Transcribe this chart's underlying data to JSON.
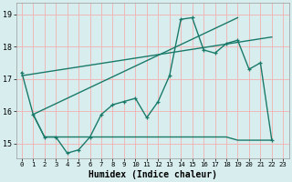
{
  "xlabel": "Humidex (Indice chaleur)",
  "xlim": [
    -0.5,
    23.5
  ],
  "ylim": [
    14.55,
    19.35
  ],
  "yticks": [
    15,
    16,
    17,
    18,
    19
  ],
  "xticks": [
    0,
    1,
    2,
    3,
    4,
    5,
    6,
    7,
    8,
    9,
    10,
    11,
    12,
    13,
    14,
    15,
    16,
    17,
    18,
    19,
    20,
    21,
    22,
    23
  ],
  "bg_color": "#d8eeee",
  "grid_color": "#f0b8b8",
  "line_color": "#1a7a6a",
  "line1_x": [
    0,
    1,
    2,
    3,
    4,
    5,
    6,
    7,
    8,
    9,
    10,
    11,
    12,
    13,
    14,
    15,
    16,
    17,
    18,
    19,
    20,
    21,
    22
  ],
  "line1_y": [
    17.2,
    15.9,
    15.2,
    15.2,
    14.7,
    14.8,
    15.2,
    15.9,
    16.2,
    16.3,
    16.4,
    15.8,
    16.3,
    17.1,
    18.85,
    18.9,
    17.9,
    17.8,
    18.1,
    18.2,
    17.3,
    17.5,
    15.1
  ],
  "line_flat_x": [
    1,
    2,
    3,
    4,
    5,
    6,
    7,
    8,
    9,
    10,
    11,
    12,
    13,
    14,
    15,
    16,
    17,
    18,
    19,
    20,
    21,
    22
  ],
  "line_flat_y": [
    15.9,
    15.2,
    15.2,
    15.2,
    15.2,
    15.2,
    15.2,
    15.2,
    15.2,
    15.2,
    15.2,
    15.2,
    15.2,
    15.2,
    15.2,
    15.2,
    15.2,
    15.2,
    15.1,
    15.1,
    15.1,
    15.1
  ]
}
